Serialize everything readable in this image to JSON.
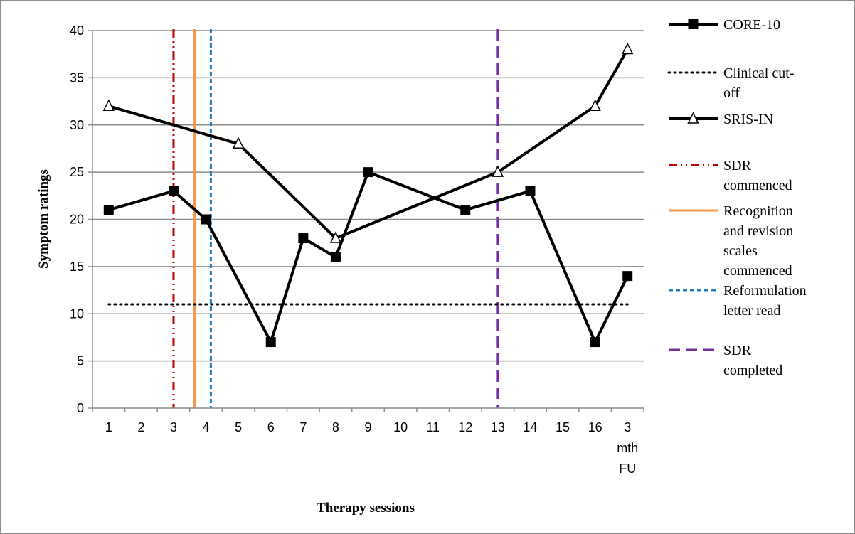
{
  "chart_data": {
    "type": "line",
    "title": "",
    "xlabel": "Therapy sessions",
    "ylabel": "Symptom ratings",
    "ylim": [
      0,
      40
    ],
    "yticks": [
      "0",
      "5",
      "10",
      "15",
      "20",
      "25",
      "30",
      "35",
      "40"
    ],
    "categories": [
      "1",
      "2",
      "3",
      "4",
      "5",
      "6",
      "7",
      "8",
      "9",
      "10",
      "11",
      "12",
      "13",
      "14",
      "15",
      "16",
      "3\nmth\nFU"
    ],
    "grid": "horizontal",
    "legend_position": "right",
    "series": [
      {
        "name": "CORE-10",
        "marker": "square",
        "color": "#000000",
        "points": [
          {
            "x": 1,
            "y": 21
          },
          {
            "x": 3,
            "y": 23
          },
          {
            "x": 4,
            "y": 20
          },
          {
            "x": 6,
            "y": 7
          },
          {
            "x": 7,
            "y": 18
          },
          {
            "x": 8,
            "y": 16
          },
          {
            "x": 9,
            "y": 25
          },
          {
            "x": 12,
            "y": 21
          },
          {
            "x": 14,
            "y": 23
          },
          {
            "x": 16,
            "y": 7
          },
          {
            "x": 17,
            "y": 14
          }
        ]
      },
      {
        "name": "Clinical cut-off",
        "marker": "none",
        "style": "dotted",
        "color": "#000000",
        "points": [
          {
            "x": 1,
            "y": 11
          },
          {
            "x": 17,
            "y": 11
          }
        ]
      },
      {
        "name": "SRIS-IN",
        "marker": "triangle",
        "color": "#000000",
        "points": [
          {
            "x": 1,
            "y": 32
          },
          {
            "x": 5,
            "y": 28
          },
          {
            "x": 8,
            "y": 18
          },
          {
            "x": 13,
            "y": 25
          },
          {
            "x": 16,
            "y": 32
          },
          {
            "x": 17,
            "y": 38
          }
        ]
      }
    ],
    "vertical_markers": [
      {
        "name": "SDR commenced",
        "x": 3,
        "style": "dash-dot-dot",
        "color": "#c00000"
      },
      {
        "name": "Recognition and revision scales commenced",
        "x": 3.65,
        "style": "solid",
        "color": "#f79646"
      },
      {
        "name": "Reformulation letter read",
        "x": 4.15,
        "style": "dashed",
        "color": "#1f7bc4"
      },
      {
        "name": "SDR completed",
        "x": 13,
        "style": "long-dash",
        "color": "#7030a0"
      }
    ]
  }
}
